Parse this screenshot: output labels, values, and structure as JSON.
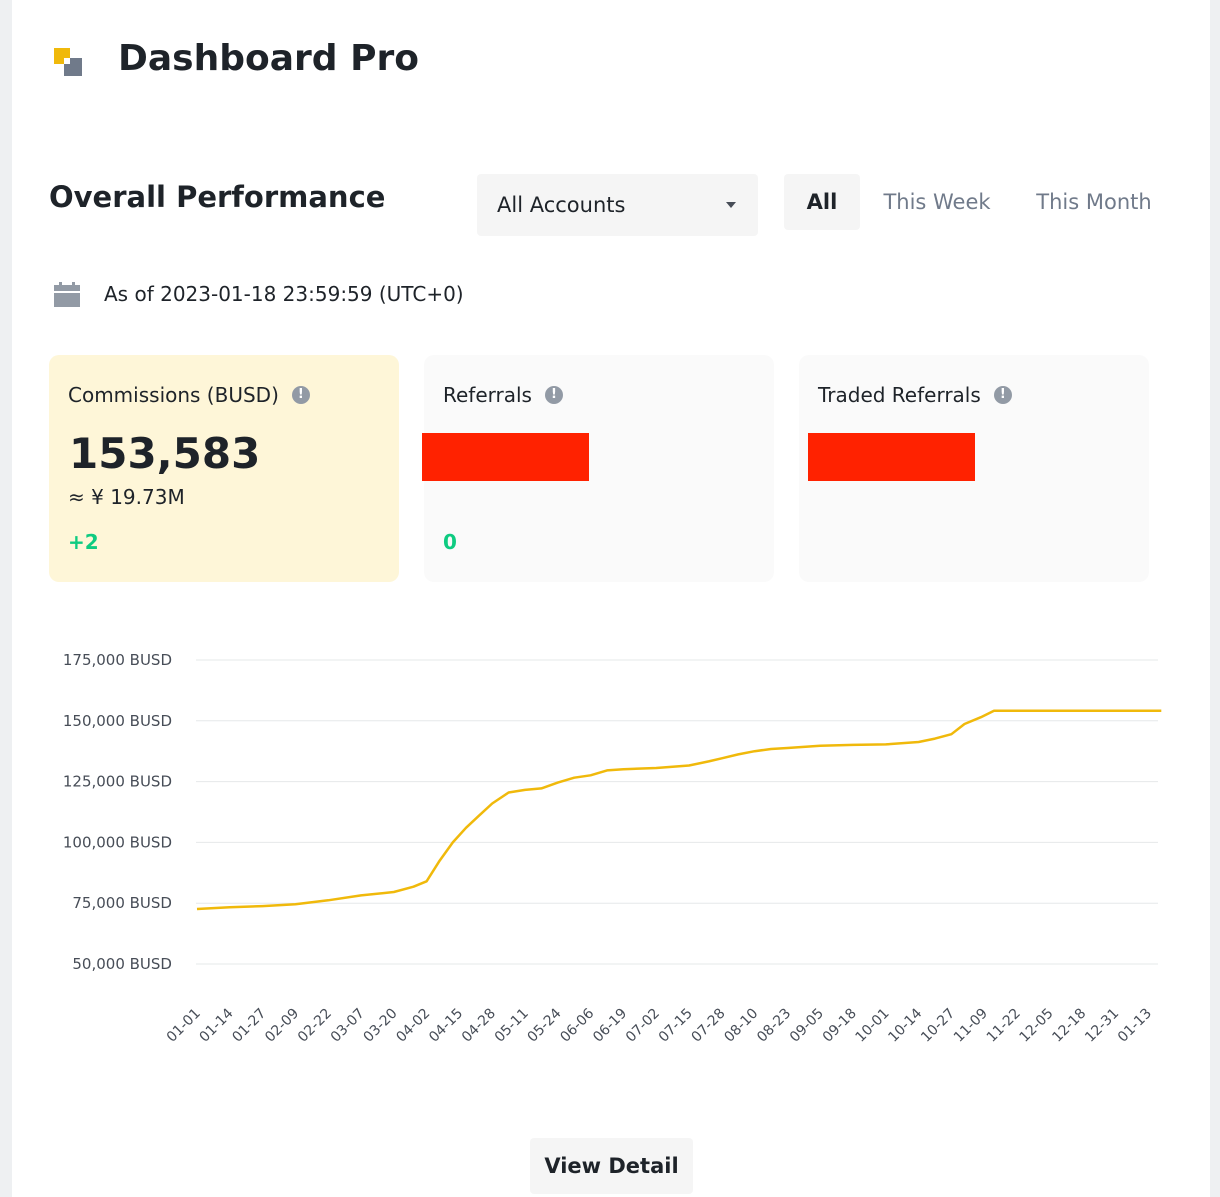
{
  "header": {
    "title": "Dashboard Pro"
  },
  "performance": {
    "title": "Overall Performance",
    "account_select": {
      "value": "All Accounts"
    },
    "tabs": [
      {
        "label": "All",
        "active": true
      },
      {
        "label": "This Week",
        "active": false
      },
      {
        "label": "This Month",
        "active": false
      }
    ],
    "as_of": "As of 2023-01-18 23:59:59 (UTC+0)"
  },
  "cards": {
    "commissions": {
      "label": "Commissions (BUSD)",
      "value": "153,583",
      "sub": "≈ ¥ 19.73M",
      "change": "+2"
    },
    "referrals": {
      "label": "Referrals",
      "change": "0"
    },
    "traded_referrals": {
      "label": "Traded Referrals"
    }
  },
  "colors": {
    "accent": "#f0b90b",
    "positive": "#0ecb81",
    "redaction": "#ff2200"
  },
  "chart_data": {
    "type": "line",
    "y_ticks": [
      "50,000 BUSD",
      "75,000 BUSD",
      "100,000 BUSD",
      "125,000 BUSD",
      "150,000 BUSD",
      "175,000 BUSD"
    ],
    "ylim": [
      50000,
      175000
    ],
    "x_ticks": [
      "01-01",
      "01-14",
      "01-27",
      "02-09",
      "02-22",
      "03-07",
      "03-20",
      "04-02",
      "04-15",
      "04-28",
      "05-11",
      "05-24",
      "06-06",
      "06-19",
      "07-02",
      "07-15",
      "07-28",
      "08-10",
      "08-23",
      "09-05",
      "09-18",
      "10-01",
      "10-14",
      "10-27",
      "11-09",
      "11-22",
      "12-05",
      "12-18",
      "12-31",
      "01-13"
    ],
    "grid": true,
    "series": [
      {
        "color": "#f0b90b",
        "x": [
          0,
          1,
          2,
          3,
          4,
          5,
          6,
          6.6,
          7,
          7.4,
          7.8,
          8.2,
          8.6,
          9,
          9.5,
          10,
          10.5,
          11,
          11.5,
          12,
          12.5,
          13,
          14,
          15,
          15.6,
          16,
          16.5,
          17,
          17.5,
          18,
          19,
          20,
          21,
          22,
          22.5,
          23,
          23.4,
          23.9,
          24.3,
          24.5,
          25,
          26,
          27,
          28,
          29,
          29.4
        ],
        "y": [
          72600,
          73300,
          73800,
          74600,
          76200,
          78200,
          79600,
          81800,
          84000,
          92500,
          100000,
          106000,
          111000,
          116000,
          120500,
          121600,
          122200,
          124600,
          126600,
          127600,
          129600,
          130100,
          130600,
          131600,
          133300,
          134600,
          136200,
          137500,
          138400,
          138800,
          139700,
          140100,
          140300,
          141300,
          142700,
          144500,
          148700,
          151500,
          154100,
          154100,
          154100,
          154100,
          154100,
          154100,
          154100,
          154100
        ]
      }
    ]
  },
  "footer": {
    "view_detail_label": "View Detail"
  }
}
